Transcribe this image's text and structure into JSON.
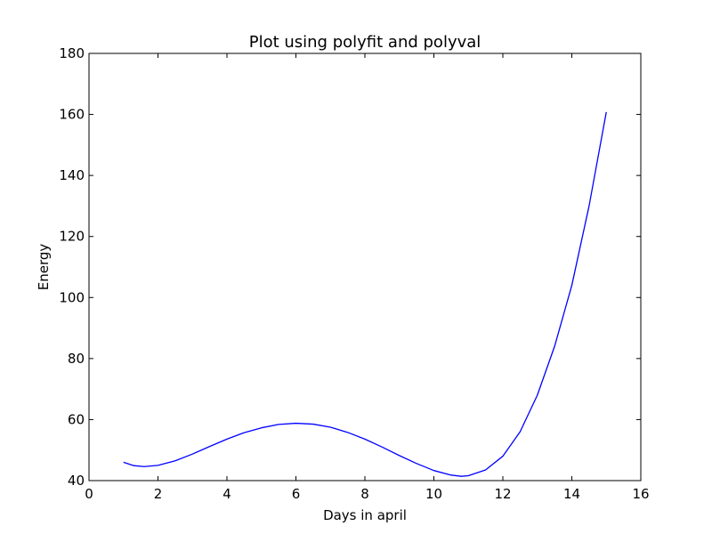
{
  "chart_data": {
    "type": "line",
    "title": "Plot using polyfit and polyval",
    "xlabel": "Days in april",
    "ylabel": "Energy",
    "xlim": [
      0,
      16
    ],
    "ylim": [
      40,
      180
    ],
    "x_ticks": [
      "0",
      "2",
      "4",
      "6",
      "8",
      "10",
      "12",
      "14",
      "16"
    ],
    "y_ticks": [
      "40",
      "60",
      "80",
      "100",
      "120",
      "140",
      "160",
      "180"
    ],
    "grid": false,
    "series": [
      {
        "color": "#0000ff",
        "x": [
          1.0,
          1.3,
          1.6,
          2.0,
          2.5,
          3.0,
          3.5,
          4.0,
          4.5,
          5.0,
          5.5,
          6.0,
          6.5,
          7.0,
          7.5,
          8.0,
          8.5,
          9.0,
          9.5,
          10.0,
          10.5,
          10.8,
          11.0,
          11.5,
          12.0,
          12.5,
          13.0,
          13.5,
          14.0,
          14.5,
          15.0
        ],
        "y": [
          46.0,
          44.9,
          44.6,
          45.0,
          46.5,
          48.7,
          51.2,
          53.6,
          55.7,
          57.3,
          58.4,
          58.8,
          58.5,
          57.5,
          55.8,
          53.6,
          51.0,
          48.2,
          45.6,
          43.3,
          41.8,
          41.4,
          41.6,
          43.5,
          48.0,
          56.0,
          68.0,
          84.0,
          104.0,
          130.0,
          160.8
        ]
      }
    ]
  }
}
